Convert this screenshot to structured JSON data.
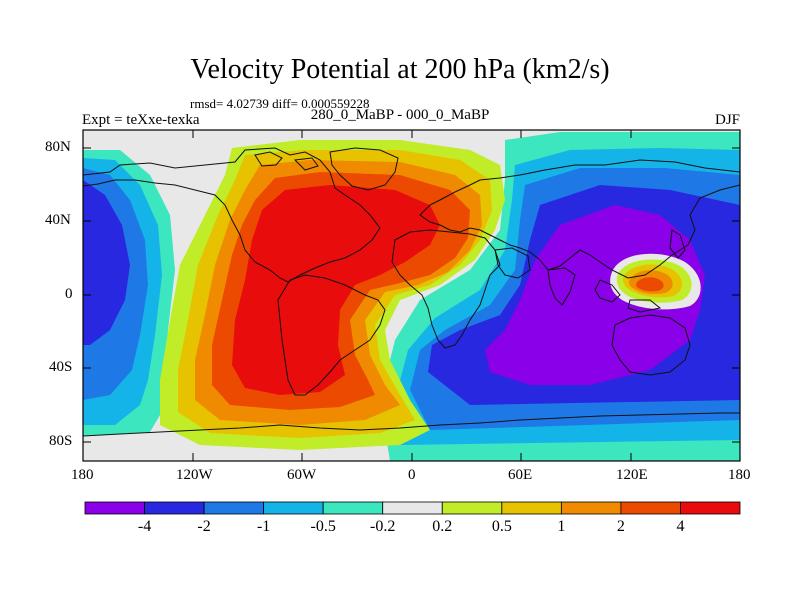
{
  "title": "Velocity Potential at 200 hPa (km2/s)",
  "stats": "rmsd= 4.02739 diff= 0.000559228",
  "subtitle": "280_0_MaBP - 000_0_MaBP",
  "expt_label": "Expt = teXxe-texka",
  "season": "DJF",
  "axes": {
    "y_ticks": [
      "80N",
      "40N",
      "0",
      "40S",
      "80S"
    ],
    "x_ticks": [
      "180",
      "120W",
      "60W",
      "0",
      "60E",
      "120E",
      "180"
    ]
  },
  "colorbar": {
    "colors": [
      "#8a00e8",
      "#2828e0",
      "#1e78e6",
      "#14b4e8",
      "#3ce6be",
      "#e8e8e8",
      "#c0ec28",
      "#e6c200",
      "#f08a00",
      "#ec4a00",
      "#e80c0c"
    ],
    "labels": [
      "-4",
      "-2",
      "-1",
      "-0.5",
      "-0.2",
      "0.2",
      "0.5",
      "1",
      "2",
      "4"
    ]
  },
  "chart_data": {
    "type": "contour-map",
    "variable": "velocity potential difference",
    "level": "200 hPa",
    "units": "km2/s",
    "levels": [
      -4,
      -2,
      -1,
      -0.5,
      -0.2,
      0.2,
      0.5,
      1,
      2,
      4
    ],
    "xlim": [
      -180,
      180
    ],
    "ylim": [
      -90,
      90
    ],
    "features": [
      {
        "name": "positive maximum",
        "lon": -45,
        "lat": 10,
        "value_range": "> 4"
      },
      {
        "name": "negative minimum",
        "lon": 120,
        "lat": 20,
        "value_range": "< -4"
      },
      {
        "name": "secondary positive maximum",
        "lon": 130,
        "lat": 2,
        "value_range": "2 to 4"
      }
    ]
  }
}
